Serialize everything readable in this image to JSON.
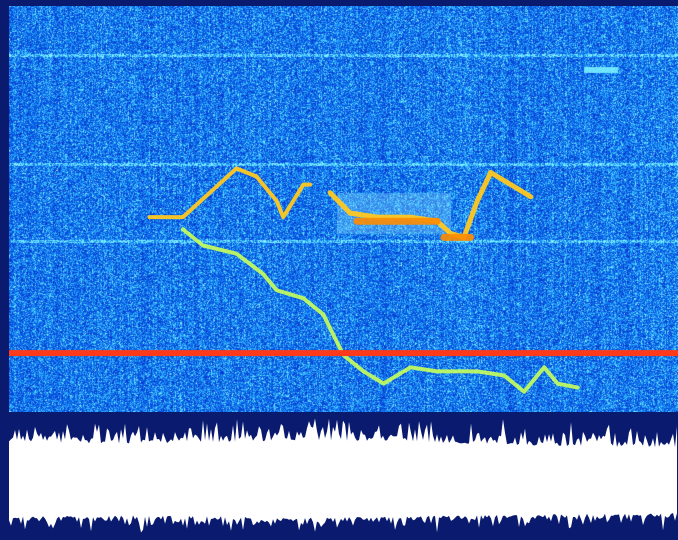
{
  "colors": {
    "page_background": "#0a1a6e",
    "spectrogram_low": "#0a28c8",
    "spectrogram_mid": "#3ca0ff",
    "spectrogram_high": "#7fe8ff",
    "trace_lower": "#c8ff5a",
    "trace_upper": "#ffc820",
    "trace_hot": "#ff8c00",
    "reference_line": "#ff3a1a",
    "waveform_fill": "#ffffff"
  },
  "spectrogram": {
    "horizontal_bands": [
      0.12,
      0.39,
      0.58,
      0.855
    ],
    "reference_line_level": 0.855
  },
  "traces": {
    "upper_contour": [
      [
        0.21,
        0.52
      ],
      [
        0.26,
        0.52
      ],
      [
        0.3,
        0.46
      ],
      [
        0.34,
        0.4
      ],
      [
        0.37,
        0.42
      ],
      [
        0.4,
        0.48
      ],
      [
        0.41,
        0.52
      ],
      [
        0.44,
        0.44
      ],
      [
        0.45,
        0.44
      ]
    ],
    "mid_contour": [
      [
        0.48,
        0.46
      ],
      [
        0.51,
        0.51
      ],
      [
        0.55,
        0.52
      ],
      [
        0.6,
        0.52
      ],
      [
        0.64,
        0.53
      ],
      [
        0.66,
        0.56
      ],
      [
        0.68,
        0.57
      ],
      [
        0.7,
        0.48
      ],
      [
        0.72,
        0.41
      ],
      [
        0.75,
        0.44
      ],
      [
        0.78,
        0.47
      ]
    ],
    "lower_contour": [
      [
        0.26,
        0.55
      ],
      [
        0.29,
        0.59
      ],
      [
        0.34,
        0.61
      ],
      [
        0.38,
        0.66
      ],
      [
        0.4,
        0.7
      ],
      [
        0.44,
        0.72
      ],
      [
        0.47,
        0.76
      ],
      [
        0.5,
        0.86
      ],
      [
        0.53,
        0.9
      ],
      [
        0.56,
        0.93
      ],
      [
        0.6,
        0.89
      ],
      [
        0.64,
        0.9
      ],
      [
        0.7,
        0.9
      ],
      [
        0.74,
        0.91
      ],
      [
        0.77,
        0.95
      ],
      [
        0.8,
        0.89
      ],
      [
        0.82,
        0.93
      ],
      [
        0.85,
        0.94
      ]
    ],
    "hot_segments": [
      [
        0.52,
        0.53,
        0.64,
        0.53
      ],
      [
        0.65,
        0.57,
        0.69,
        0.57
      ]
    ]
  },
  "waveform": {
    "envelope_keypoints": [
      [
        0,
        0.12
      ],
      [
        0.15,
        0.14
      ],
      [
        0.3,
        0.13
      ],
      [
        0.45,
        0.11
      ],
      [
        0.55,
        0.12
      ],
      [
        0.7,
        0.14
      ],
      [
        0.85,
        0.16
      ],
      [
        1,
        0.17
      ]
    ]
  }
}
